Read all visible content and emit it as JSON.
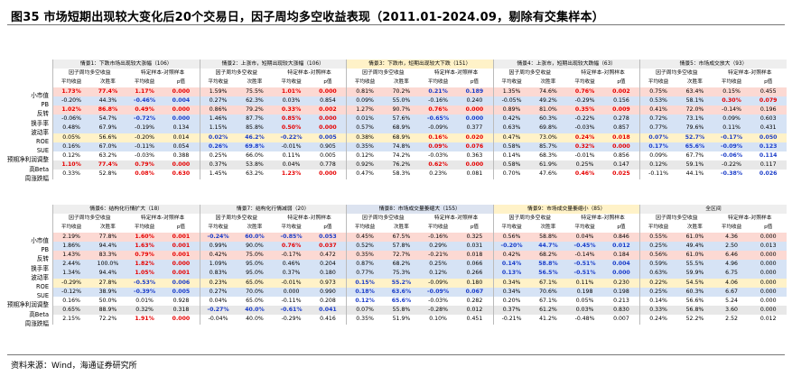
{
  "title": "图35 市场短期出现较大变化后20个交易日，因子周均多空收益表现（2011.01-2024.09，剔除有交集样本）",
  "footer": "资料来源：Wind，海通证券研究所",
  "sub_headers": [
    "平均收益",
    "次胜率",
    "平均收益",
    "p值"
  ],
  "groups_top": [
    {
      "title": "情景1：下跌市场出现较大涨幅（106）",
      "h1": "因子周均多空收益",
      "h2": "特定样本-对照样本"
    },
    {
      "title": "情景2：上涨市，短期出现较大涨幅（106）",
      "h1": "因子周均多空收益",
      "h2": "特定样本-对照样本"
    },
    {
      "title": "情景3：下跌市，短期出现较大下跌（151）",
      "h1": "因子周均多空收益",
      "h2": "特定样本-对照样本"
    },
    {
      "title": "情景4：上涨市，短期出现较大跌幅（63）",
      "h1": "因子周均多空收益",
      "h2": "特定样本-对照样本"
    },
    {
      "title": "情景5：市场成交放大（93）",
      "h1": "因子周均多空收益",
      "h2": "特定样本-对照样本"
    }
  ],
  "groups_bottom": [
    {
      "title": "情景6：结构化行情扩大（18）",
      "h1": "因子周均多空收益",
      "h2": "特定样本-对照样本"
    },
    {
      "title": "情景7：结构化行情减弱（20）",
      "h1": "因子周均多空收益",
      "h2": "特定样本-对照样本"
    },
    {
      "title": "情景8：市场成交量萎缩大（155）",
      "h1": "因子周均多空收益",
      "h2": "特定样本-对照样本"
    },
    {
      "title": "情景9：市场成交量萎缩小（85）",
      "h1": "因子周均多空收益",
      "h2": "特定样本-对照样本"
    },
    {
      "title": "全区间",
      "h1": "因子周均多空收益",
      "h2": "特定样本-对照样本"
    }
  ],
  "row_labels": [
    "小市值",
    "PB",
    "反转",
    "换手率",
    "波动率",
    "ROE",
    "SUE",
    "预期净利润调整",
    "高Beta",
    "周涨跌幅"
  ],
  "row_bg": [
    "pink",
    "blue",
    "pink",
    "blue",
    "blue",
    "yellow",
    "blue",
    "",
    "grey",
    ""
  ],
  "top_rows": [
    [
      [
        "1.73%",
        "r"
      ],
      [
        "77.4%",
        "r"
      ],
      [
        "1.17%",
        "r"
      ],
      [
        "0.000",
        "r"
      ],
      [
        "1.59%",
        ""
      ],
      [
        "75.5%",
        ""
      ],
      [
        "1.01%",
        "r"
      ],
      [
        "0.000",
        "r"
      ],
      [
        "0.81%",
        ""
      ],
      [
        "70.2%",
        ""
      ],
      [
        "0.21%",
        "b"
      ],
      [
        "0.189",
        "b"
      ],
      [
        "1.35%",
        ""
      ],
      [
        "74.6%",
        ""
      ],
      [
        "0.76%",
        "r"
      ],
      [
        "0.002",
        "r"
      ],
      [
        "0.75%",
        ""
      ],
      [
        "63.4%",
        ""
      ],
      [
        "0.15%",
        ""
      ],
      [
        "0.455",
        ""
      ]
    ],
    [
      [
        "-0.20%",
        ""
      ],
      [
        "44.3%",
        ""
      ],
      [
        "-0.46%",
        "b"
      ],
      [
        "0.004",
        "b"
      ],
      [
        "0.27%",
        ""
      ],
      [
        "62.3%",
        ""
      ],
      [
        "0.03%",
        ""
      ],
      [
        "0.854",
        ""
      ],
      [
        "0.09%",
        ""
      ],
      [
        "55.0%",
        ""
      ],
      [
        "-0.16%",
        ""
      ],
      [
        "0.240",
        ""
      ],
      [
        "-0.05%",
        ""
      ],
      [
        "49.2%",
        ""
      ],
      [
        "-0.29%",
        ""
      ],
      [
        "0.156",
        ""
      ],
      [
        "0.53%",
        ""
      ],
      [
        "58.1%",
        ""
      ],
      [
        "0.30%",
        "r"
      ],
      [
        "0.079",
        "r"
      ]
    ],
    [
      [
        "1.02%",
        "r"
      ],
      [
        "86.8%",
        "r"
      ],
      [
        "0.49%",
        "r"
      ],
      [
        "0.000",
        "r"
      ],
      [
        "0.86%",
        ""
      ],
      [
        "79.2%",
        ""
      ],
      [
        "0.33%",
        "r"
      ],
      [
        "0.002",
        "r"
      ],
      [
        "1.27%",
        ""
      ],
      [
        "90.7%",
        ""
      ],
      [
        "0.76%",
        "r"
      ],
      [
        "0.000",
        "r"
      ],
      [
        "0.89%",
        ""
      ],
      [
        "81.0%",
        ""
      ],
      [
        "0.35%",
        "r"
      ],
      [
        "0.009",
        "r"
      ],
      [
        "0.41%",
        ""
      ],
      [
        "72.0%",
        ""
      ],
      [
        "-0.14%",
        ""
      ],
      [
        "0.196",
        ""
      ]
    ],
    [
      [
        "-0.06%",
        ""
      ],
      [
        "54.7%",
        ""
      ],
      [
        "-0.72%",
        "b"
      ],
      [
        "0.000",
        "b"
      ],
      [
        "1.46%",
        ""
      ],
      [
        "87.7%",
        ""
      ],
      [
        "0.85%",
        "r"
      ],
      [
        "0.000",
        "r"
      ],
      [
        "0.01%",
        ""
      ],
      [
        "57.6%",
        ""
      ],
      [
        "-0.65%",
        "b"
      ],
      [
        "0.000",
        "b"
      ],
      [
        "0.42%",
        ""
      ],
      [
        "60.3%",
        ""
      ],
      [
        "-0.22%",
        ""
      ],
      [
        "0.278",
        ""
      ],
      [
        "0.72%",
        ""
      ],
      [
        "73.1%",
        ""
      ],
      [
        "0.09%",
        ""
      ],
      [
        "0.603",
        ""
      ]
    ],
    [
      [
        "0.48%",
        ""
      ],
      [
        "67.9%",
        ""
      ],
      [
        "-0.19%",
        ""
      ],
      [
        "0.134",
        ""
      ],
      [
        "1.15%",
        ""
      ],
      [
        "85.8%",
        ""
      ],
      [
        "0.50%",
        "r"
      ],
      [
        "0.000",
        "r"
      ],
      [
        "0.57%",
        ""
      ],
      [
        "68.9%",
        ""
      ],
      [
        "-0.09%",
        ""
      ],
      [
        "0.377",
        ""
      ],
      [
        "0.63%",
        ""
      ],
      [
        "69.8%",
        ""
      ],
      [
        "-0.03%",
        ""
      ],
      [
        "0.857",
        ""
      ],
      [
        "0.77%",
        ""
      ],
      [
        "79.6%",
        ""
      ],
      [
        "0.11%",
        ""
      ],
      [
        "0.431",
        ""
      ]
    ],
    [
      [
        "0.05%",
        ""
      ],
      [
        "56.6%",
        ""
      ],
      [
        "-0.20%",
        ""
      ],
      [
        "0.014",
        ""
      ],
      [
        "0.02%",
        "b"
      ],
      [
        "46.2%",
        "b"
      ],
      [
        "-0.22%",
        "b"
      ],
      [
        "0.005",
        "b"
      ],
      [
        "0.38%",
        ""
      ],
      [
        "68.9%",
        ""
      ],
      [
        "0.16%",
        "r"
      ],
      [
        "0.020",
        "r"
      ],
      [
        "0.47%",
        ""
      ],
      [
        "73.0%",
        ""
      ],
      [
        "0.24%",
        "r"
      ],
      [
        "0.018",
        "r"
      ],
      [
        "0.07%",
        "b"
      ],
      [
        "52.7%",
        "b"
      ],
      [
        "-0.17%",
        "b"
      ],
      [
        "0.050",
        "b"
      ]
    ],
    [
      [
        "0.16%",
        ""
      ],
      [
        "67.0%",
        ""
      ],
      [
        "-0.11%",
        ""
      ],
      [
        "0.054",
        ""
      ],
      [
        "0.26%",
        "b"
      ],
      [
        "69.8%",
        "b"
      ],
      [
        "-0.01%",
        ""
      ],
      [
        "0.905",
        ""
      ],
      [
        "0.35%",
        ""
      ],
      [
        "74.8%",
        ""
      ],
      [
        "0.09%",
        "r"
      ],
      [
        "0.076",
        "r"
      ],
      [
        "0.58%",
        ""
      ],
      [
        "85.7%",
        ""
      ],
      [
        "0.32%",
        "r"
      ],
      [
        "0.000",
        "r"
      ],
      [
        "0.17%",
        "b"
      ],
      [
        "65.6%",
        "b"
      ],
      [
        "-0.09%",
        "b"
      ],
      [
        "0.123",
        "b"
      ]
    ],
    [
      [
        "0.12%",
        ""
      ],
      [
        "63.2%",
        ""
      ],
      [
        "-0.03%",
        ""
      ],
      [
        "0.388",
        ""
      ],
      [
        "0.25%",
        ""
      ],
      [
        "66.0%",
        ""
      ],
      [
        "0.11%",
        ""
      ],
      [
        "0.005",
        ""
      ],
      [
        "0.12%",
        ""
      ],
      [
        "74.2%",
        ""
      ],
      [
        "-0.03%",
        ""
      ],
      [
        "0.363",
        ""
      ],
      [
        "0.14%",
        ""
      ],
      [
        "68.3%",
        ""
      ],
      [
        "-0.01%",
        ""
      ],
      [
        "0.856",
        ""
      ],
      [
        "0.09%",
        ""
      ],
      [
        "67.7%",
        ""
      ],
      [
        "-0.06%",
        "b"
      ],
      [
        "0.114",
        "b"
      ]
    ],
    [
      [
        "1.10%",
        "r"
      ],
      [
        "77.4%",
        "r"
      ],
      [
        "0.79%",
        "r"
      ],
      [
        "0.000",
        "r"
      ],
      [
        "0.37%",
        ""
      ],
      [
        "53.8%",
        ""
      ],
      [
        "0.04%",
        ""
      ],
      [
        "0.778",
        ""
      ],
      [
        "0.92%",
        ""
      ],
      [
        "76.2%",
        ""
      ],
      [
        "0.62%",
        "r"
      ],
      [
        "0.000",
        "r"
      ],
      [
        "0.58%",
        ""
      ],
      [
        "61.9%",
        ""
      ],
      [
        "0.25%",
        ""
      ],
      [
        "0.147",
        ""
      ],
      [
        "0.12%",
        ""
      ],
      [
        "59.1%",
        ""
      ],
      [
        "-0.22%",
        ""
      ],
      [
        "0.117",
        ""
      ]
    ],
    [
      [
        "0.33%",
        ""
      ],
      [
        "52.8%",
        ""
      ],
      [
        "0.08%",
        "r"
      ],
      [
        "0.630",
        "r"
      ],
      [
        "1.45%",
        ""
      ],
      [
        "63.2%",
        ""
      ],
      [
        "1.23%",
        "r"
      ],
      [
        "0.000",
        "r"
      ],
      [
        "0.47%",
        ""
      ],
      [
        "58.3%",
        ""
      ],
      [
        "0.23%",
        ""
      ],
      [
        "0.081",
        ""
      ],
      [
        "0.70%",
        ""
      ],
      [
        "47.6%",
        ""
      ],
      [
        "0.46%",
        "r"
      ],
      [
        "0.025",
        "r"
      ],
      [
        "-0.11%",
        ""
      ],
      [
        "44.1%",
        ""
      ],
      [
        "-0.38%",
        "b"
      ],
      [
        "0.026",
        "b"
      ]
    ]
  ],
  "bottom_rows": [
    [
      [
        "2.19%",
        ""
      ],
      [
        "77.8%",
        ""
      ],
      [
        "1.60%",
        "r"
      ],
      [
        "0.001",
        "r"
      ],
      [
        "-0.24%",
        "b"
      ],
      [
        "60.0%",
        "b"
      ],
      [
        "-0.85%",
        "b"
      ],
      [
        "0.053",
        "b"
      ],
      [
        "0.45%",
        ""
      ],
      [
        "67.5%",
        ""
      ],
      [
        "-0.16%",
        ""
      ],
      [
        "0.325",
        ""
      ],
      [
        "0.56%",
        ""
      ],
      [
        "58.8%",
        ""
      ],
      [
        "0.04%",
        ""
      ],
      [
        "0.846",
        ""
      ],
      [
        "0.55%",
        ""
      ],
      [
        "61.0%",
        ""
      ],
      [
        "4.36",
        ""
      ],
      [
        "0.000",
        ""
      ]
    ],
    [
      [
        "1.86%",
        ""
      ],
      [
        "94.4%",
        ""
      ],
      [
        "1.63%",
        "r"
      ],
      [
        "0.001",
        "r"
      ],
      [
        "0.99%",
        ""
      ],
      [
        "90.0%",
        ""
      ],
      [
        "0.76%",
        "r"
      ],
      [
        "0.037",
        "r"
      ],
      [
        "0.52%",
        ""
      ],
      [
        "57.8%",
        ""
      ],
      [
        "0.29%",
        ""
      ],
      [
        "0.031",
        ""
      ],
      [
        "-0.20%",
        "b"
      ],
      [
        "44.7%",
        "b"
      ],
      [
        "-0.45%",
        "b"
      ],
      [
        "0.012",
        "b"
      ],
      [
        "0.25%",
        ""
      ],
      [
        "49.4%",
        ""
      ],
      [
        "2.50",
        ""
      ],
      [
        "0.013",
        ""
      ]
    ],
    [
      [
        "1.43%",
        ""
      ],
      [
        "83.3%",
        ""
      ],
      [
        "0.79%",
        "r"
      ],
      [
        "0.001",
        "r"
      ],
      [
        "0.42%",
        ""
      ],
      [
        "75.0%",
        ""
      ],
      [
        "-0.17%",
        ""
      ],
      [
        "0.472",
        ""
      ],
      [
        "0.35%",
        ""
      ],
      [
        "72.7%",
        ""
      ],
      [
        "-0.21%",
        ""
      ],
      [
        "0.018",
        ""
      ],
      [
        "0.42%",
        ""
      ],
      [
        "68.2%",
        ""
      ],
      [
        "-0.14%",
        ""
      ],
      [
        "0.184",
        ""
      ],
      [
        "0.56%",
        ""
      ],
      [
        "61.0%",
        ""
      ],
      [
        "6.46",
        ""
      ],
      [
        "0.000",
        ""
      ]
    ],
    [
      [
        "2.44%",
        ""
      ],
      [
        "100.0%",
        ""
      ],
      [
        "1.82%",
        "r"
      ],
      [
        "0.000",
        "r"
      ],
      [
        "1.09%",
        ""
      ],
      [
        "95.0%",
        ""
      ],
      [
        "0.46%",
        ""
      ],
      [
        "0.204",
        ""
      ],
      [
        "0.87%",
        ""
      ],
      [
        "68.2%",
        ""
      ],
      [
        "0.25%",
        ""
      ],
      [
        "0.066",
        ""
      ],
      [
        "0.14%",
        "b"
      ],
      [
        "58.8%",
        "b"
      ],
      [
        "-0.51%",
        "b"
      ],
      [
        "0.004",
        "b"
      ],
      [
        "0.59%",
        ""
      ],
      [
        "55.5%",
        ""
      ],
      [
        "4.96",
        ""
      ],
      [
        "0.000",
        ""
      ]
    ],
    [
      [
        "1.34%",
        ""
      ],
      [
        "94.4%",
        ""
      ],
      [
        "1.05%",
        "r"
      ],
      [
        "0.001",
        "r"
      ],
      [
        "0.83%",
        ""
      ],
      [
        "95.0%",
        ""
      ],
      [
        "0.37%",
        ""
      ],
      [
        "0.180",
        ""
      ],
      [
        "0.77%",
        ""
      ],
      [
        "75.3%",
        ""
      ],
      [
        "0.12%",
        ""
      ],
      [
        "0.266",
        ""
      ],
      [
        "0.13%",
        "b"
      ],
      [
        "56.5%",
        "b"
      ],
      [
        "-0.51%",
        "b"
      ],
      [
        "0.000",
        "b"
      ],
      [
        "0.63%",
        ""
      ],
      [
        "59.9%",
        ""
      ],
      [
        "6.75",
        ""
      ],
      [
        "0.000",
        ""
      ]
    ],
    [
      [
        "-0.29%",
        ""
      ],
      [
        "27.8%",
        ""
      ],
      [
        "-0.53%",
        "b"
      ],
      [
        "0.006",
        "b"
      ],
      [
        "0.23%",
        ""
      ],
      [
        "65.0%",
        ""
      ],
      [
        "-0.01%",
        ""
      ],
      [
        "0.973",
        ""
      ],
      [
        "0.15%",
        "b"
      ],
      [
        "55.2%",
        "b"
      ],
      [
        "-0.09%",
        ""
      ],
      [
        "0.180",
        ""
      ],
      [
        "0.34%",
        ""
      ],
      [
        "67.1%",
        ""
      ],
      [
        "0.11%",
        ""
      ],
      [
        "0.230",
        ""
      ],
      [
        "0.22%",
        ""
      ],
      [
        "54.5%",
        ""
      ],
      [
        "4.06",
        ""
      ],
      [
        "0.000",
        ""
      ]
    ],
    [
      [
        "-0.12%",
        ""
      ],
      [
        "38.9%",
        ""
      ],
      [
        "-0.39%",
        "b"
      ],
      [
        "0.005",
        "b"
      ],
      [
        "0.27%",
        ""
      ],
      [
        "70.0%",
        ""
      ],
      [
        "0.000",
        ""
      ],
      [
        "0.990",
        ""
      ],
      [
        "0.18%",
        "b"
      ],
      [
        "63.6%",
        "b"
      ],
      [
        "-0.09%",
        "b"
      ],
      [
        "0.067",
        "b"
      ],
      [
        "0.34%",
        ""
      ],
      [
        "70.6%",
        ""
      ],
      [
        "0.198",
        ""
      ],
      [
        "0.198",
        ""
      ],
      [
        "0.25%",
        ""
      ],
      [
        "60.3%",
        ""
      ],
      [
        "6.67",
        ""
      ],
      [
        "0.000",
        ""
      ]
    ],
    [
      [
        "0.16%",
        ""
      ],
      [
        "50.0%",
        ""
      ],
      [
        "0.01%",
        ""
      ],
      [
        "0.928",
        ""
      ],
      [
        "0.04%",
        ""
      ],
      [
        "65.0%",
        ""
      ],
      [
        "-0.11%",
        ""
      ],
      [
        "0.208",
        ""
      ],
      [
        "0.12%",
        "b"
      ],
      [
        "65.6%",
        "b"
      ],
      [
        "-0.03%",
        ""
      ],
      [
        "0.282",
        ""
      ],
      [
        "0.20%",
        ""
      ],
      [
        "67.1%",
        ""
      ],
      [
        "0.05%",
        ""
      ],
      [
        "0.213",
        ""
      ],
      [
        "0.14%",
        ""
      ],
      [
        "56.6%",
        ""
      ],
      [
        "5.24",
        ""
      ],
      [
        "0.000",
        ""
      ]
    ],
    [
      [
        "0.65%",
        ""
      ],
      [
        "88.9%",
        ""
      ],
      [
        "0.32%",
        ""
      ],
      [
        "0.318",
        ""
      ],
      [
        "-0.27%",
        "b"
      ],
      [
        "40.0%",
        "b"
      ],
      [
        "-0.61%",
        "b"
      ],
      [
        "0.041",
        "b"
      ],
      [
        "0.07%",
        ""
      ],
      [
        "55.8%",
        ""
      ],
      [
        "-0.28%",
        ""
      ],
      [
        "0.012",
        ""
      ],
      [
        "0.37%",
        ""
      ],
      [
        "61.2%",
        ""
      ],
      [
        "0.03%",
        ""
      ],
      [
        "0.830",
        ""
      ],
      [
        "0.33%",
        ""
      ],
      [
        "56.8%",
        ""
      ],
      [
        "3.60",
        ""
      ],
      [
        "0.000",
        ""
      ]
    ],
    [
      [
        "2.15%",
        ""
      ],
      [
        "72.2%",
        ""
      ],
      [
        "1.91%",
        "r"
      ],
      [
        "0.000",
        "r"
      ],
      [
        "-0.04%",
        ""
      ],
      [
        "40.0%",
        ""
      ],
      [
        "-0.29%",
        ""
      ],
      [
        "0.416",
        ""
      ],
      [
        "0.35%",
        ""
      ],
      [
        "51.9%",
        ""
      ],
      [
        "0.10%",
        ""
      ],
      [
        "0.451",
        ""
      ],
      [
        "-0.21%",
        ""
      ],
      [
        "41.2%",
        ""
      ],
      [
        "-0.48%",
        ""
      ],
      [
        "0.007",
        ""
      ],
      [
        "0.24%",
        ""
      ],
      [
        "52.2%",
        ""
      ],
      [
        "2.52",
        ""
      ],
      [
        "0.012",
        ""
      ]
    ]
  ]
}
